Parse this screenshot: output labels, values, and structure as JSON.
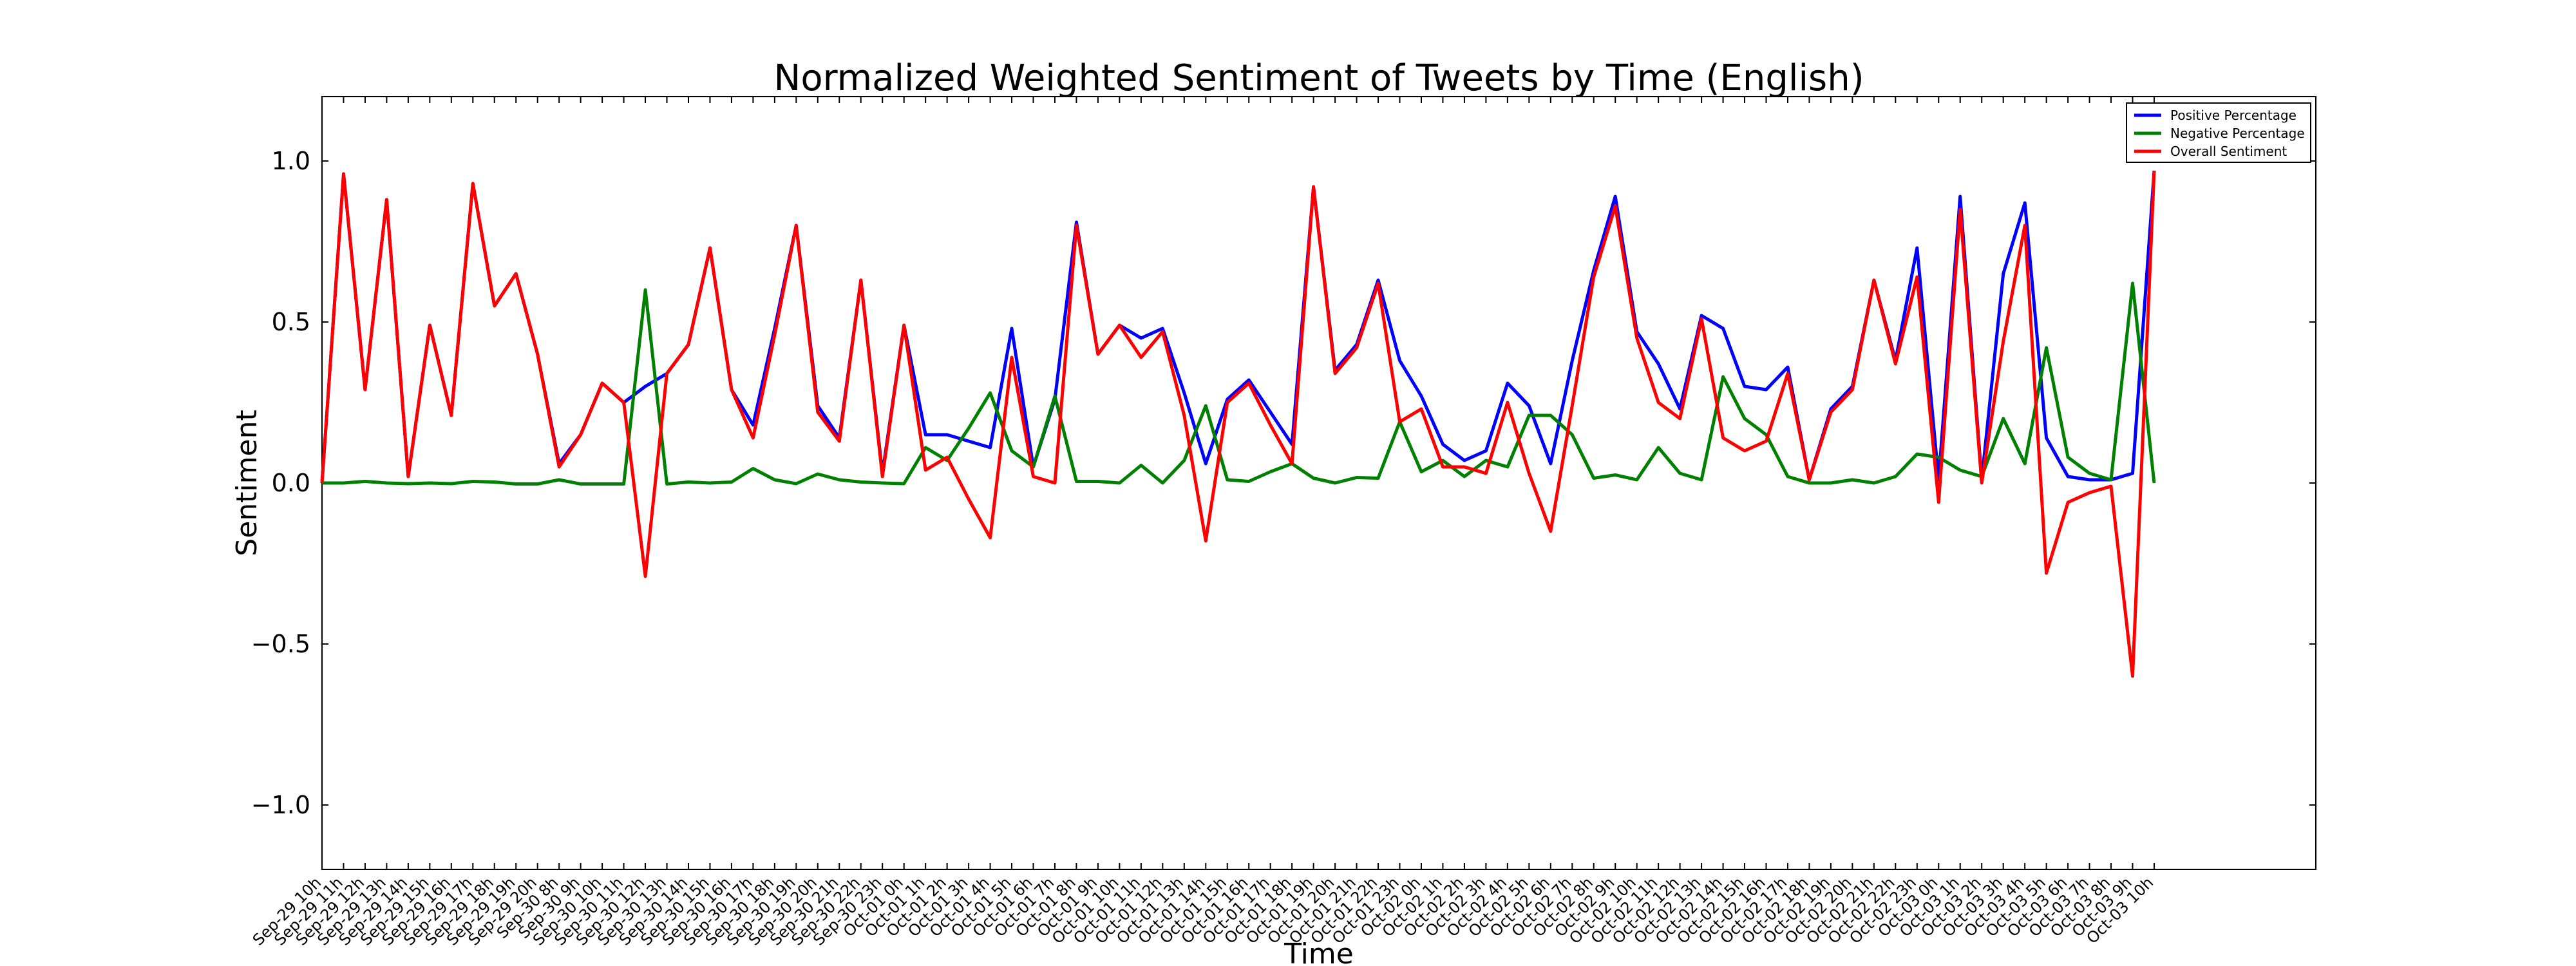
{
  "chart_data": {
    "type": "line",
    "title": "Normalized Weighted Sentiment of Tweets by Time (English)",
    "xlabel": "Time",
    "ylabel": "Sentiment",
    "ylim": [
      -1.2,
      1.2
    ],
    "yticks": [
      -1.0,
      -0.5,
      0.0,
      0.5,
      1.0
    ],
    "ytick_labels": [
      "−1.0",
      "−0.5",
      "0.0",
      "0.5",
      "1.0"
    ],
    "grid": false,
    "legend_position": "top-right",
    "categories": [
      "Sep-29 10h",
      "Sep-29 11h",
      "Sep-29 12h",
      "Sep-29 13h",
      "Sep-29 14h",
      "Sep-29 15h",
      "Sep-29 16h",
      "Sep-29 17h",
      "Sep-29 18h",
      "Sep-29 19h",
      "Sep-29 20h",
      "Sep-30 8h",
      "Sep-30 9h",
      "Sep-30 10h",
      "Sep-30 11h",
      "Sep-30 12h",
      "Sep-30 13h",
      "Sep-30 14h",
      "Sep-30 15h",
      "Sep-30 16h",
      "Sep-30 17h",
      "Sep-30 18h",
      "Sep-30 19h",
      "Sep-30 20h",
      "Sep-30 21h",
      "Sep-30 22h",
      "Sep-30 23h",
      "Oct-01 0h",
      "Oct-01 1h",
      "Oct-01 2h",
      "Oct-01 3h",
      "Oct-01 4h",
      "Oct-01 5h",
      "Oct-01 6h",
      "Oct-01 7h",
      "Oct-01 8h",
      "Oct-01 9h",
      "Oct-01 10h",
      "Oct-01 11h",
      "Oct-01 12h",
      "Oct-01 13h",
      "Oct-01 14h",
      "Oct-01 15h",
      "Oct-01 16h",
      "Oct-01 17h",
      "Oct-01 18h",
      "Oct-01 19h",
      "Oct-01 20h",
      "Oct-01 21h",
      "Oct-01 22h",
      "Oct-01 23h",
      "Oct-02 0h",
      "Oct-02 1h",
      "Oct-02 2h",
      "Oct-02 3h",
      "Oct-02 4h",
      "Oct-02 5h",
      "Oct-02 6h",
      "Oct-02 7h",
      "Oct-02 8h",
      "Oct-02 9h",
      "Oct-02 10h",
      "Oct-02 11h",
      "Oct-02 12h",
      "Oct-02 13h",
      "Oct-02 14h",
      "Oct-02 15h",
      "Oct-02 16h",
      "Oct-02 17h",
      "Oct-02 18h",
      "Oct-02 19h",
      "Oct-02 20h",
      "Oct-02 21h",
      "Oct-02 22h",
      "Oct-02 23h",
      "Oct-03 0h",
      "Oct-03 1h",
      "Oct-03 2h",
      "Oct-03 3h",
      "Oct-03 4h",
      "Oct-03 5h",
      "Oct-03 6h",
      "Oct-03 7h",
      "Oct-03 8h",
      "Oct-03 9h",
      "Oct-03 10h"
    ],
    "series": [
      {
        "name": "Positive Percentage",
        "color": "#0000ff",
        "values": [
          0.0,
          0.96,
          0.29,
          0.88,
          0.02,
          0.49,
          0.21,
          0.93,
          0.55,
          0.65,
          0.4,
          0.06,
          0.15,
          0.31,
          0.25,
          0.3,
          0.34,
          0.43,
          0.73,
          0.29,
          0.18,
          0.48,
          0.8,
          0.24,
          0.14,
          0.63,
          0.03,
          0.49,
          0.15,
          0.15,
          0.13,
          0.11,
          0.48,
          0.05,
          0.26,
          0.81,
          0.4,
          0.49,
          0.45,
          0.48,
          0.28,
          0.06,
          0.26,
          0.32,
          0.22,
          0.12,
          0.92,
          0.35,
          0.43,
          0.63,
          0.38,
          0.27,
          0.12,
          0.07,
          0.1,
          0.31,
          0.24,
          0.06,
          0.38,
          0.66,
          0.89,
          0.47,
          0.37,
          0.23,
          0.52,
          0.48,
          0.3,
          0.29,
          0.36,
          0.01,
          0.23,
          0.3,
          0.63,
          0.38,
          0.73,
          0.01,
          0.89,
          0.01,
          0.65,
          0.87,
          0.14,
          0.02,
          0.01,
          0.01,
          0.03,
          0.97
        ]
      },
      {
        "name": "Negative Percentage",
        "color": "#008000",
        "values": [
          0.0,
          0.0,
          0.005,
          0.0,
          -0.002,
          0.0,
          -0.002,
          0.005,
          0.003,
          -0.003,
          -0.003,
          0.01,
          -0.003,
          -0.003,
          -0.003,
          0.6,
          -0.003,
          0.003,
          0.0,
          0.003,
          0.045,
          0.01,
          -0.002,
          0.028,
          0.01,
          0.003,
          0.0,
          -0.002,
          0.11,
          0.07,
          0.17,
          0.28,
          0.1,
          0.05,
          0.27,
          0.005,
          0.005,
          0.0,
          0.055,
          0.0,
          0.07,
          0.24,
          0.01,
          0.005,
          0.035,
          0.06,
          0.015,
          0.0,
          0.017,
          0.015,
          0.19,
          0.035,
          0.07,
          0.02,
          0.07,
          0.05,
          0.21,
          0.21,
          0.15,
          0.015,
          0.025,
          0.01,
          0.11,
          0.03,
          0.01,
          0.33,
          0.2,
          0.15,
          0.02,
          0.0,
          0.0,
          0.01,
          0.0,
          0.02,
          0.09,
          0.08,
          0.04,
          0.02,
          0.2,
          0.06,
          0.42,
          0.08,
          0.03,
          0.01,
          0.62,
          0.0
        ]
      },
      {
        "name": "Overall Sentiment",
        "color": "#ff0000",
        "values": [
          0.0,
          0.96,
          0.29,
          0.88,
          0.02,
          0.49,
          0.21,
          0.93,
          0.55,
          0.65,
          0.4,
          0.05,
          0.15,
          0.31,
          0.25,
          -0.29,
          0.34,
          0.43,
          0.73,
          0.29,
          0.14,
          0.46,
          0.8,
          0.22,
          0.13,
          0.63,
          0.02,
          0.49,
          0.04,
          0.08,
          -0.05,
          -0.17,
          0.39,
          0.02,
          0.0,
          0.8,
          0.4,
          0.49,
          0.39,
          0.47,
          0.21,
          -0.18,
          0.25,
          0.31,
          0.18,
          0.06,
          0.92,
          0.34,
          0.42,
          0.62,
          0.19,
          0.23,
          0.05,
          0.05,
          0.03,
          0.25,
          0.03,
          -0.15,
          0.24,
          0.64,
          0.86,
          0.45,
          0.25,
          0.2,
          0.51,
          0.14,
          0.1,
          0.13,
          0.34,
          0.01,
          0.22,
          0.29,
          0.63,
          0.37,
          0.64,
          -0.06,
          0.85,
          0.0,
          0.44,
          0.8,
          -0.28,
          -0.06,
          -0.03,
          -0.01,
          -0.6,
          0.97
        ]
      }
    ]
  }
}
